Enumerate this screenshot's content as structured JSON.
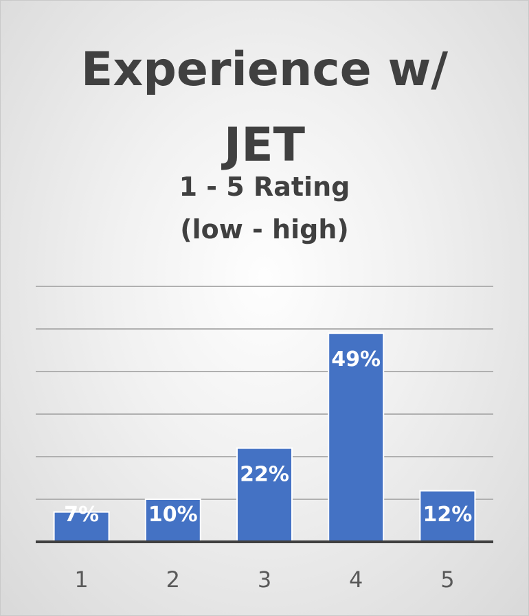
{
  "chart_data": {
    "type": "bar",
    "title_lines": [
      "Experience w/",
      "JET"
    ],
    "subtitle_lines": [
      "1 - 5 Rating",
      "(low - high)"
    ],
    "categories": [
      "1",
      "2",
      "3",
      "4",
      "5"
    ],
    "values": [
      7,
      10,
      22,
      49,
      12
    ],
    "value_labels": [
      "7%",
      "10%",
      "22%",
      "49%",
      "12%"
    ],
    "ylim": [
      0,
      60
    ],
    "y_gridline_step": 10,
    "grid": true,
    "legend": "none",
    "bar_color": "#4472c4",
    "grid_color": "#b0b0b0",
    "axis_color": "#404040"
  }
}
